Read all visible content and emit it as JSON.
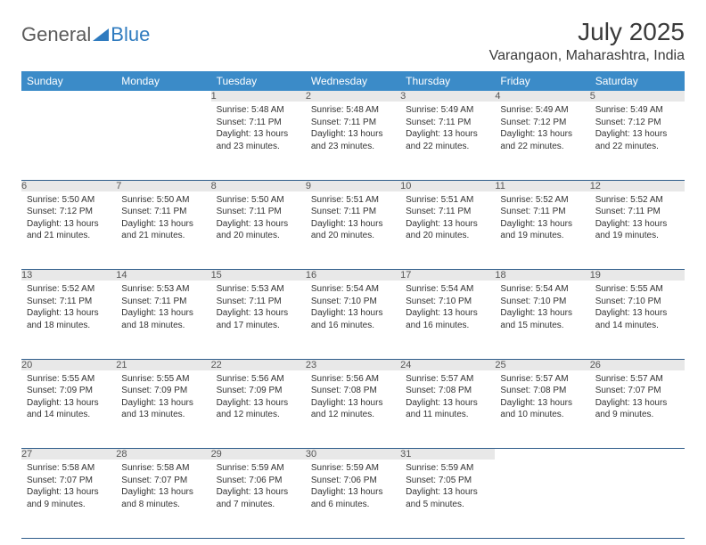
{
  "logo": {
    "part1": "General",
    "part2": "Blue"
  },
  "title": "July 2025",
  "location": "Varangaon, Maharashtra, India",
  "colors": {
    "header_bg": "#3b8bc8",
    "header_text": "#ffffff",
    "daynum_bg": "#e8e8e8",
    "row_border": "#2e5c8a",
    "logo_gray": "#5a5a5a",
    "logo_blue": "#2f7bbf"
  },
  "weekdays": [
    "Sunday",
    "Monday",
    "Tuesday",
    "Wednesday",
    "Thursday",
    "Friday",
    "Saturday"
  ],
  "weeks": [
    [
      null,
      null,
      {
        "n": "1",
        "sr": "5:48 AM",
        "ss": "7:11 PM",
        "dl": "13 hours and 23 minutes."
      },
      {
        "n": "2",
        "sr": "5:48 AM",
        "ss": "7:11 PM",
        "dl": "13 hours and 23 minutes."
      },
      {
        "n": "3",
        "sr": "5:49 AM",
        "ss": "7:11 PM",
        "dl": "13 hours and 22 minutes."
      },
      {
        "n": "4",
        "sr": "5:49 AM",
        "ss": "7:12 PM",
        "dl": "13 hours and 22 minutes."
      },
      {
        "n": "5",
        "sr": "5:49 AM",
        "ss": "7:12 PM",
        "dl": "13 hours and 22 minutes."
      }
    ],
    [
      {
        "n": "6",
        "sr": "5:50 AM",
        "ss": "7:12 PM",
        "dl": "13 hours and 21 minutes."
      },
      {
        "n": "7",
        "sr": "5:50 AM",
        "ss": "7:11 PM",
        "dl": "13 hours and 21 minutes."
      },
      {
        "n": "8",
        "sr": "5:50 AM",
        "ss": "7:11 PM",
        "dl": "13 hours and 20 minutes."
      },
      {
        "n": "9",
        "sr": "5:51 AM",
        "ss": "7:11 PM",
        "dl": "13 hours and 20 minutes."
      },
      {
        "n": "10",
        "sr": "5:51 AM",
        "ss": "7:11 PM",
        "dl": "13 hours and 20 minutes."
      },
      {
        "n": "11",
        "sr": "5:52 AM",
        "ss": "7:11 PM",
        "dl": "13 hours and 19 minutes."
      },
      {
        "n": "12",
        "sr": "5:52 AM",
        "ss": "7:11 PM",
        "dl": "13 hours and 19 minutes."
      }
    ],
    [
      {
        "n": "13",
        "sr": "5:52 AM",
        "ss": "7:11 PM",
        "dl": "13 hours and 18 minutes."
      },
      {
        "n": "14",
        "sr": "5:53 AM",
        "ss": "7:11 PM",
        "dl": "13 hours and 18 minutes."
      },
      {
        "n": "15",
        "sr": "5:53 AM",
        "ss": "7:11 PM",
        "dl": "13 hours and 17 minutes."
      },
      {
        "n": "16",
        "sr": "5:54 AM",
        "ss": "7:10 PM",
        "dl": "13 hours and 16 minutes."
      },
      {
        "n": "17",
        "sr": "5:54 AM",
        "ss": "7:10 PM",
        "dl": "13 hours and 16 minutes."
      },
      {
        "n": "18",
        "sr": "5:54 AM",
        "ss": "7:10 PM",
        "dl": "13 hours and 15 minutes."
      },
      {
        "n": "19",
        "sr": "5:55 AM",
        "ss": "7:10 PM",
        "dl": "13 hours and 14 minutes."
      }
    ],
    [
      {
        "n": "20",
        "sr": "5:55 AM",
        "ss": "7:09 PM",
        "dl": "13 hours and 14 minutes."
      },
      {
        "n": "21",
        "sr": "5:55 AM",
        "ss": "7:09 PM",
        "dl": "13 hours and 13 minutes."
      },
      {
        "n": "22",
        "sr": "5:56 AM",
        "ss": "7:09 PM",
        "dl": "13 hours and 12 minutes."
      },
      {
        "n": "23",
        "sr": "5:56 AM",
        "ss": "7:08 PM",
        "dl": "13 hours and 12 minutes."
      },
      {
        "n": "24",
        "sr": "5:57 AM",
        "ss": "7:08 PM",
        "dl": "13 hours and 11 minutes."
      },
      {
        "n": "25",
        "sr": "5:57 AM",
        "ss": "7:08 PM",
        "dl": "13 hours and 10 minutes."
      },
      {
        "n": "26",
        "sr": "5:57 AM",
        "ss": "7:07 PM",
        "dl": "13 hours and 9 minutes."
      }
    ],
    [
      {
        "n": "27",
        "sr": "5:58 AM",
        "ss": "7:07 PM",
        "dl": "13 hours and 9 minutes."
      },
      {
        "n": "28",
        "sr": "5:58 AM",
        "ss": "7:07 PM",
        "dl": "13 hours and 8 minutes."
      },
      {
        "n": "29",
        "sr": "5:59 AM",
        "ss": "7:06 PM",
        "dl": "13 hours and 7 minutes."
      },
      {
        "n": "30",
        "sr": "5:59 AM",
        "ss": "7:06 PM",
        "dl": "13 hours and 6 minutes."
      },
      {
        "n": "31",
        "sr": "5:59 AM",
        "ss": "7:05 PM",
        "dl": "13 hours and 5 minutes."
      },
      null,
      null
    ]
  ],
  "labels": {
    "sunrise": "Sunrise:",
    "sunset": "Sunset:",
    "daylight": "Daylight:"
  }
}
